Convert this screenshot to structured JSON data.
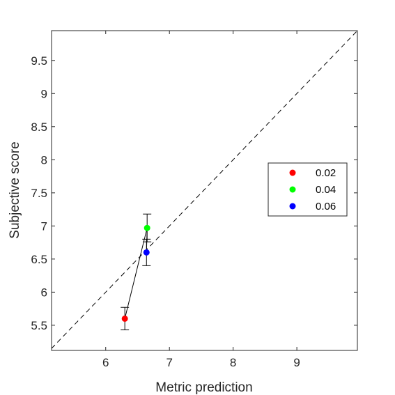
{
  "chart_data": {
    "type": "scatter",
    "title": "",
    "xlabel": "Metric prediction",
    "ylabel": "Subjective score",
    "xlim": [
      5.15,
      9.95
    ],
    "ylim": [
      5.12,
      9.95
    ],
    "x_ticks": [
      6,
      7,
      8,
      9
    ],
    "x_tick_labels": [
      "6",
      "7",
      "8",
      "9"
    ],
    "y_ticks": [
      5.5,
      6,
      6.5,
      7,
      7.5,
      8,
      8.5,
      9,
      9.5
    ],
    "y_tick_labels": [
      "5.5",
      "6",
      "6.5",
      "7",
      "7.5",
      "8",
      "8.5",
      "9",
      "9.5"
    ],
    "grid": false,
    "legend_position": "right",
    "reference_line": {
      "style": "dashed",
      "color": "#000000",
      "from": [
        5.15,
        5.15
      ],
      "to": [
        9.95,
        9.95
      ]
    },
    "connecting_line": {
      "color": "#000000",
      "order": [
        "0.02",
        "0.04",
        "0.06"
      ]
    },
    "series": [
      {
        "name": "0.02",
        "color": "#ff0000",
        "x": 6.3,
        "y": 5.6,
        "err_low": 5.43,
        "err_high": 5.77
      },
      {
        "name": "0.04",
        "color": "#00ff00",
        "x": 6.65,
        "y": 6.97,
        "err_low": 6.76,
        "err_high": 7.18
      },
      {
        "name": "0.06",
        "color": "#0000ff",
        "x": 6.64,
        "y": 6.6,
        "err_low": 6.4,
        "err_high": 6.8
      }
    ]
  }
}
